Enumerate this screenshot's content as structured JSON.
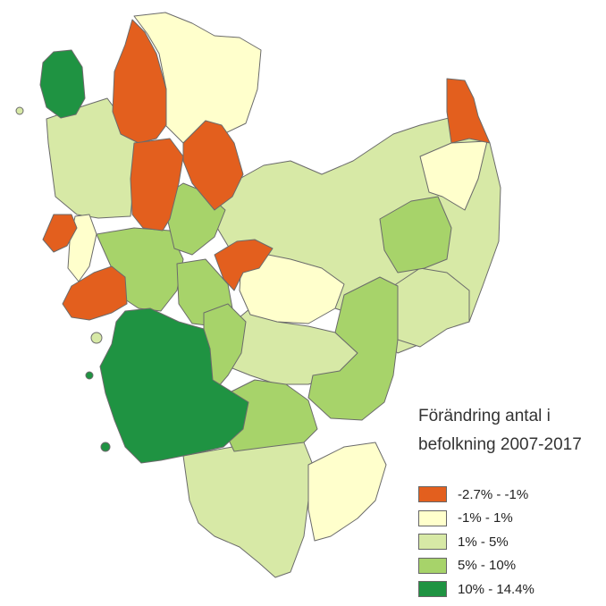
{
  "legend": {
    "title_line1": "Förändring antal i",
    "title_line2": "befolkning 2007-2017",
    "items": [
      {
        "label": "-2.7% - -1%",
        "color": "#e35f1e"
      },
      {
        "label": "-1% - 1%",
        "color": "#ffffcc"
      },
      {
        "label": "1% - 5%",
        "color": "#d7e9a6"
      },
      {
        "label": "5% - 10%",
        "color": "#a7d36a"
      },
      {
        "label": "10% - 14.4%",
        "color": "#1f9342"
      }
    ]
  }
}
